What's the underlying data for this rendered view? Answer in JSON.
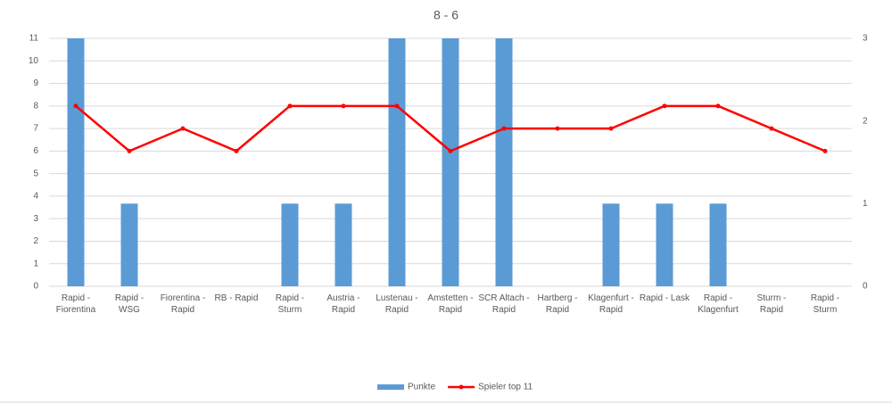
{
  "chart_data": {
    "type": "bar-line",
    "title": "8 - 6",
    "categories": [
      "Rapid - Fiorentina",
      "Rapid - WSG",
      "Fiorentina - Rapid",
      "RB - Rapid",
      "Rapid - Sturm",
      "Austria - Rapid",
      "Lustenau - Rapid",
      "Amstetten - Rapid",
      "SCR Altach - Rapid",
      "Hartberg - Rapid",
      "Klagenfurt - Rapid",
      "Rapid - Lask",
      "Rapid - Klagenfurt",
      "Sturm - Rapid",
      "Rapid - Sturm"
    ],
    "series": [
      {
        "name": "Punkte",
        "type": "bar",
        "axis": "y2",
        "color": "#5b9bd5",
        "values": [
          3,
          1,
          0,
          0,
          1,
          1,
          3,
          3,
          3,
          0,
          1,
          1,
          1,
          0,
          0
        ]
      },
      {
        "name": "Spieler top 11",
        "type": "line",
        "axis": "y",
        "color": "#ff0000",
        "values": [
          8,
          6,
          7,
          6,
          8,
          8,
          8,
          6,
          7,
          7,
          7,
          8,
          8,
          7,
          6
        ]
      }
    ],
    "ylim": [
      0,
      11
    ],
    "yticks": [
      0,
      1,
      2,
      3,
      4,
      5,
      6,
      7,
      8,
      9,
      10,
      11
    ],
    "y2lim": [
      0,
      3
    ],
    "y2ticks": [
      0,
      1,
      2,
      3
    ],
    "grid": true,
    "legend": "bottom"
  }
}
